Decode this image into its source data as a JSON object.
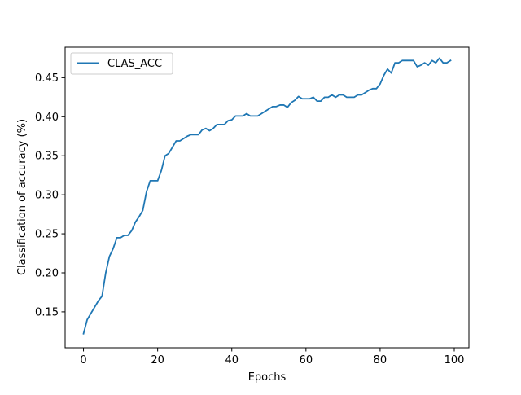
{
  "chart_data": {
    "type": "line",
    "xlabel": "Epochs",
    "ylabel": "Classification of accuracy (%)",
    "xlim": [
      -4.95,
      103.95
    ],
    "ylim": [
      0.104,
      0.489
    ],
    "xticks": [
      0,
      20,
      40,
      60,
      80,
      100
    ],
    "yticks": [
      0.15,
      0.2,
      0.25,
      0.3,
      0.35,
      0.4,
      0.45
    ],
    "xtick_labels": [
      "0",
      "20",
      "40",
      "60",
      "80",
      "100"
    ],
    "ytick_labels": [
      "0.15",
      "0.20",
      "0.25",
      "0.30",
      "0.35",
      "0.40",
      "0.45"
    ],
    "legend_position": "top-left",
    "grid": false,
    "series": [
      {
        "name": "CLAS_ACC",
        "color": "#1f77b4",
        "x": [
          0,
          1,
          2,
          3,
          4,
          5,
          6,
          7,
          8,
          9,
          10,
          11,
          12,
          13,
          14,
          15,
          16,
          17,
          18,
          19,
          20,
          21,
          22,
          23,
          24,
          25,
          26,
          27,
          28,
          29,
          30,
          31,
          32,
          33,
          34,
          35,
          36,
          37,
          38,
          39,
          40,
          41,
          42,
          43,
          44,
          45,
          46,
          47,
          48,
          49,
          50,
          51,
          52,
          53,
          54,
          55,
          56,
          57,
          58,
          59,
          60,
          61,
          62,
          63,
          64,
          65,
          66,
          67,
          68,
          69,
          70,
          71,
          72,
          73,
          74,
          75,
          76,
          77,
          78,
          79,
          80,
          81,
          82,
          83,
          84,
          85,
          86,
          87,
          88,
          89,
          90,
          91,
          92,
          93,
          94,
          95,
          96,
          97,
          98,
          99
        ],
        "values": [
          0.122,
          0.14,
          0.148,
          0.156,
          0.164,
          0.17,
          0.2,
          0.221,
          0.231,
          0.245,
          0.245,
          0.248,
          0.248,
          0.254,
          0.265,
          0.272,
          0.28,
          0.304,
          0.318,
          0.318,
          0.318,
          0.331,
          0.35,
          0.353,
          0.361,
          0.369,
          0.369,
          0.372,
          0.375,
          0.377,
          0.377,
          0.377,
          0.383,
          0.385,
          0.382,
          0.385,
          0.39,
          0.39,
          0.39,
          0.395,
          0.396,
          0.401,
          0.401,
          0.401,
          0.404,
          0.401,
          0.401,
          0.401,
          0.404,
          0.407,
          0.41,
          0.413,
          0.413,
          0.415,
          0.415,
          0.412,
          0.418,
          0.421,
          0.426,
          0.423,
          0.423,
          0.423,
          0.425,
          0.42,
          0.42,
          0.425,
          0.425,
          0.428,
          0.425,
          0.428,
          0.428,
          0.425,
          0.425,
          0.425,
          0.428,
          0.428,
          0.431,
          0.434,
          0.436,
          0.436,
          0.442,
          0.453,
          0.461,
          0.456,
          0.469,
          0.469,
          0.472,
          0.472,
          0.472,
          0.472,
          0.464,
          0.466,
          0.469,
          0.466,
          0.472,
          0.469,
          0.475,
          0.469,
          0.469,
          0.472
        ]
      }
    ]
  }
}
